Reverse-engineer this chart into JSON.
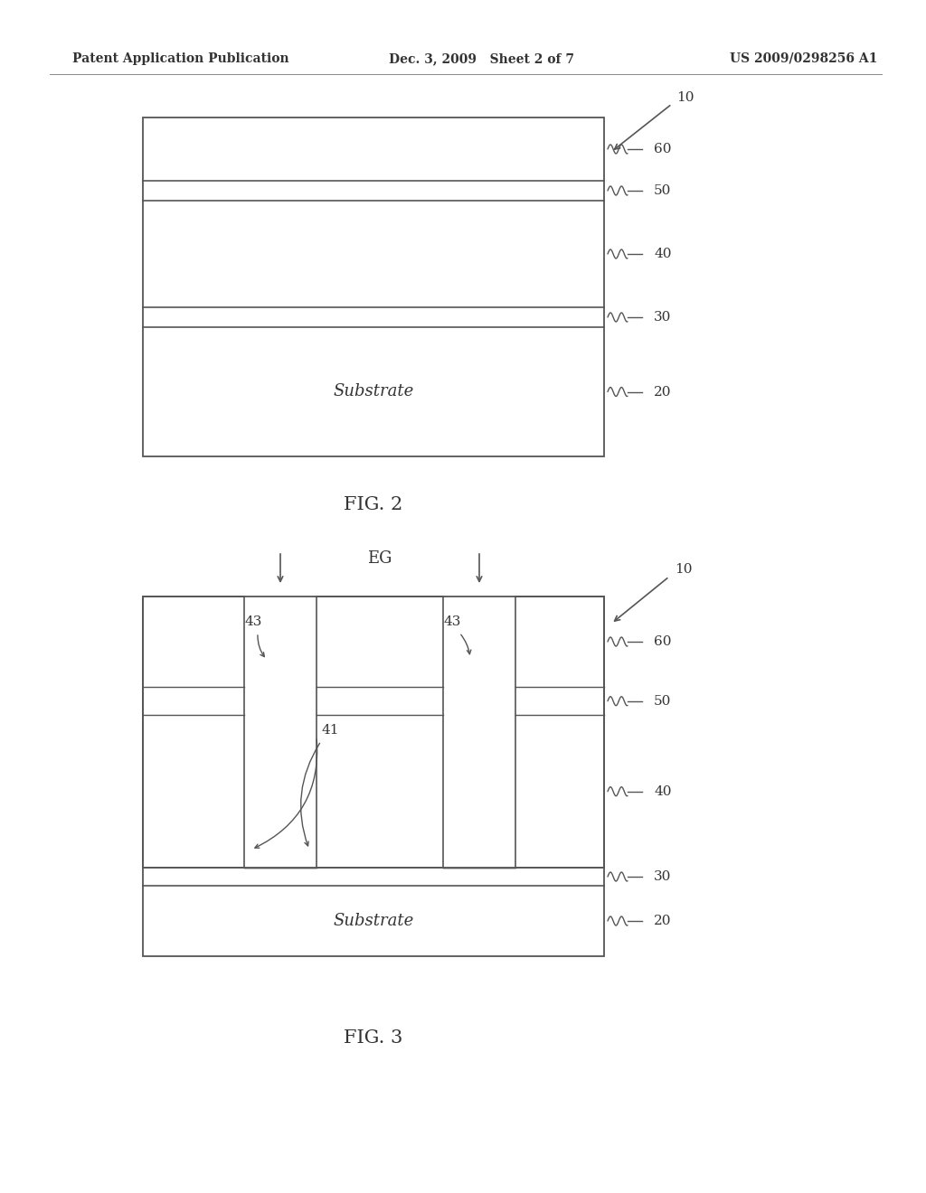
{
  "bg_color": "#ffffff",
  "header_left": "Patent Application Publication",
  "header_mid": "Dec. 3, 2009   Sheet 2 of 7",
  "header_right": "US 2009/0298256 A1",
  "fig2_caption": "FIG. 2",
  "fig3_caption": "FIG. 3",
  "label_10_1": "10",
  "label_20": "20",
  "label_30": "30",
  "label_40": "40",
  "label_50": "50",
  "label_60": "60",
  "label_10_2": "10",
  "label_20b": "20",
  "label_30b": "30",
  "label_40b": "40",
  "label_50b": "50",
  "label_60b": "60",
  "label_41": "41",
  "label_43a": "43",
  "label_43b": "43",
  "label_EG": "EG",
  "substrate_text": "Substrate",
  "substrate_text2": "Substrate",
  "line_color": "#555555",
  "text_color": "#333333"
}
